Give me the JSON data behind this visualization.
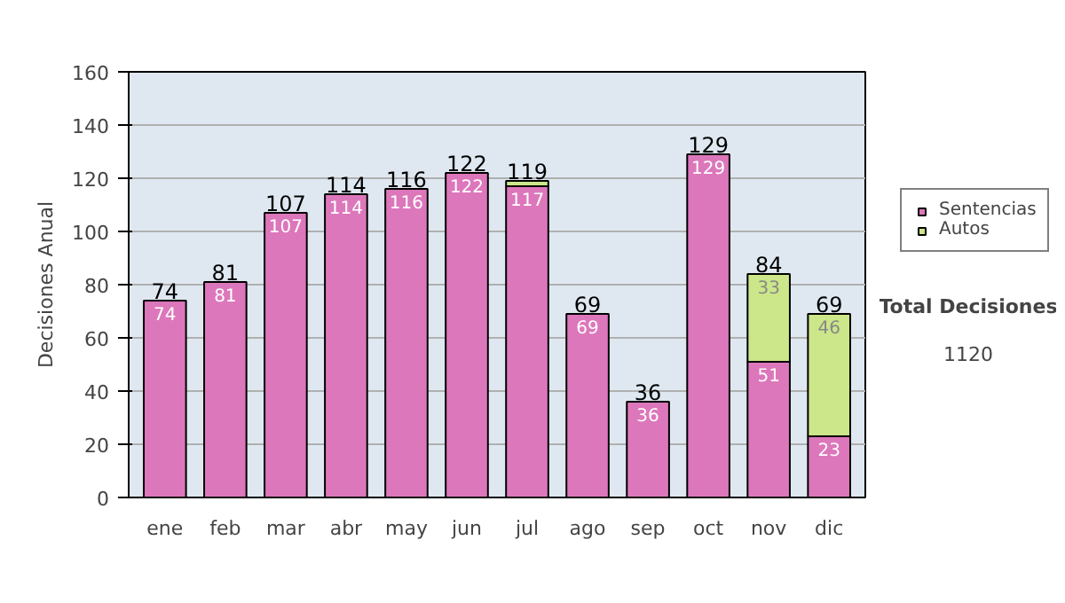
{
  "chart_data": {
    "type": "bar",
    "stacked": true,
    "ylabel": "Decisiones Anual",
    "categories": [
      "ene",
      "feb",
      "mar",
      "abr",
      "may",
      "jun",
      "jul",
      "ago",
      "sep",
      "oct",
      "nov",
      "dic"
    ],
    "series": [
      {
        "name": "Sentencias",
        "color": "#dd77bb",
        "values": [
          74,
          81,
          107,
          114,
          116,
          122,
          117,
          69,
          36,
          129,
          51,
          23
        ],
        "value_labels": [
          "74",
          "81",
          "107",
          "114",
          "116",
          "122",
          "117",
          "69",
          "36",
          "129",
          "51",
          "23"
        ]
      },
      {
        "name": "Autos",
        "color": "#cce68a",
        "values": [
          null,
          null,
          null,
          null,
          null,
          null,
          2,
          null,
          null,
          null,
          33,
          46
        ],
        "value_labels": [
          null,
          null,
          null,
          null,
          null,
          null,
          null,
          null,
          null,
          null,
          "33",
          "46"
        ]
      }
    ],
    "totals": [
      "74",
      "81",
      "107",
      "114",
      "116",
      "122",
      "119",
      "69",
      "36",
      "129",
      "84",
      "69"
    ],
    "ylim": [
      0,
      160
    ],
    "yticks": [
      0,
      20,
      40,
      60,
      80,
      100,
      120,
      140,
      160
    ],
    "grid": "y",
    "legend": "right",
    "annotations": [
      "Total Decisiones",
      "1120"
    ]
  }
}
